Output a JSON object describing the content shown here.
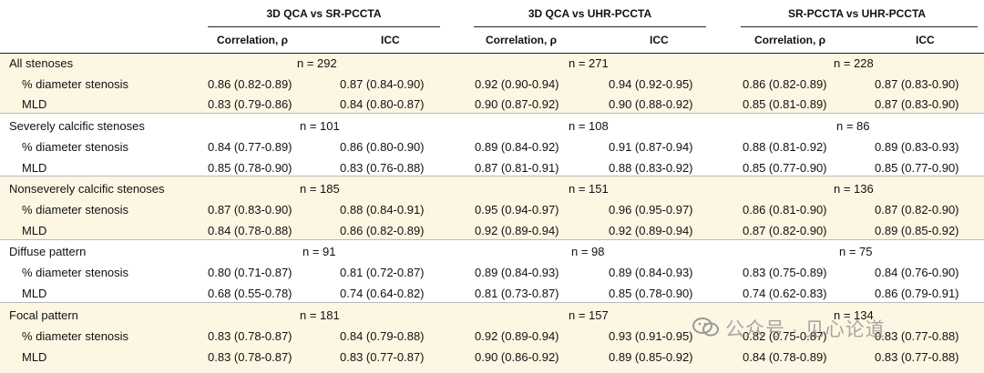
{
  "groups": [
    "3D QCA vs SR-PCCTA",
    "3D QCA vs UHR-PCCTA",
    "SR-PCCTA vs UHR-PCCTA"
  ],
  "col_heads": [
    "Correlation, ρ",
    "ICC"
  ],
  "rows": [
    {
      "title": "All stenoses",
      "n": [
        "n = 292",
        "n = 271",
        "n = 228"
      ],
      "pds": [
        "0.86 (0.82-0.89)",
        "0.87 (0.84-0.90)",
        "0.92 (0.90-0.94)",
        "0.94 (0.92-0.95)",
        "0.86 (0.82-0.89)",
        "0.87 (0.83-0.90)"
      ],
      "mld": [
        "0.83 (0.79-0.86)",
        "0.84 (0.80-0.87)",
        "0.90 (0.87-0.92)",
        "0.90 (0.88-0.92)",
        "0.85 (0.81-0.89)",
        "0.87 (0.83-0.90)"
      ]
    },
    {
      "title": "Severely calcific stenoses",
      "n": [
        "n = 101",
        "n = 108",
        "n = 86"
      ],
      "pds": [
        "0.84 (0.77-0.89)",
        "0.86 (0.80-0.90)",
        "0.89 (0.84-0.92)",
        "0.91 (0.87-0.94)",
        "0.88 (0.81-0.92)",
        "0.89 (0.83-0.93)"
      ],
      "mld": [
        "0.85 (0.78-0.90)",
        "0.83 (0.76-0.88)",
        "0.87 (0.81-0.91)",
        "0.88 (0.83-0.92)",
        "0.85 (0.77-0.90)",
        "0.85 (0.77-0.90)"
      ]
    },
    {
      "title": "Nonseverely calcific stenoses",
      "n": [
        "n = 185",
        "n = 151",
        "n = 136"
      ],
      "pds": [
        "0.87 (0.83-0.90)",
        "0.88 (0.84-0.91)",
        "0.95 (0.94-0.97)",
        "0.96 (0.95-0.97)",
        "0.86 (0.81-0.90)",
        "0.87 (0.82-0.90)"
      ],
      "mld": [
        "0.84 (0.78-0.88)",
        "0.86 (0.82-0.89)",
        "0.92 (0.89-0.94)",
        "0.92 (0.89-0.94)",
        "0.87 (0.82-0.90)",
        "0.89 (0.85-0.92)"
      ]
    },
    {
      "title": "Diffuse pattern",
      "n": [
        "n = 91",
        "n = 98",
        "n = 75"
      ],
      "pds": [
        "0.80 (0.71-0.87)",
        "0.81 (0.72-0.87)",
        "0.89 (0.84-0.93)",
        "0.89 (0.84-0.93)",
        "0.83 (0.75-0.89)",
        "0.84 (0.76-0.90)"
      ],
      "mld": [
        "0.68 (0.55-0.78)",
        "0.74 (0.64-0.82)",
        "0.81 (0.73-0.87)",
        "0.85 (0.78-0.90)",
        "0.74 (0.62-0.83)",
        "0.86 (0.79-0.91)"
      ]
    },
    {
      "title": "Focal pattern",
      "n": [
        "n = 181",
        "n = 157",
        "n = 134"
      ],
      "pds": [
        "0.83 (0.78-0.87)",
        "0.84 (0.79-0.88)",
        "0.92 (0.89-0.94)",
        "0.93 (0.91-0.95)",
        "0.82 (0.75-0.87)",
        "0.83 (0.77-0.88)"
      ],
      "mld": [
        "0.83 (0.78-0.87)",
        "0.83 (0.77-0.87)",
        "0.90 (0.86-0.92)",
        "0.89 (0.85-0.92)",
        "0.84 (0.78-0.89)",
        "0.83 (0.77-0.88)"
      ]
    }
  ],
  "sub_labels": {
    "pds": "% diameter stenosis",
    "mld": "MLD"
  },
  "watermark": "公众号 · 见心论道"
}
